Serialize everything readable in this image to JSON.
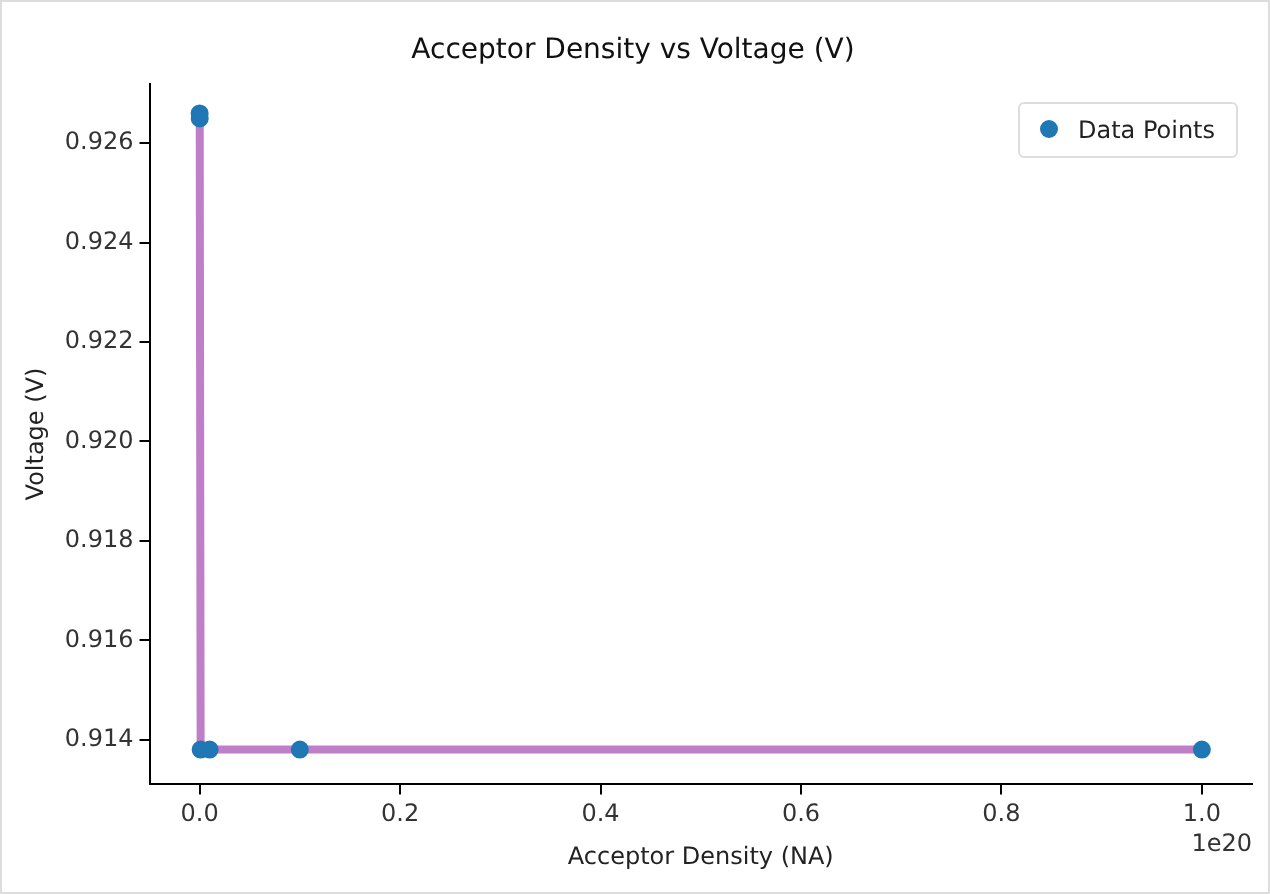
{
  "chart_data": {
    "type": "scatter",
    "title": "Acceptor Density vs Voltage (V)",
    "xlabel": "Acceptor Density (NA)",
    "ylabel": "Voltage (V)",
    "annotations": [
      "1e20"
    ],
    "x": [
      1e-05,
      0.0001,
      0.001,
      0.01,
      0.1,
      1
    ],
    "series": [
      {
        "type": "line",
        "color": "#bf7fc8",
        "values": [
          0.9266,
          0.9265,
          0.9138,
          0.9138,
          0.9138,
          0.9138
        ],
        "line_style": "solid",
        "marker": "none"
      },
      {
        "name": "Data Points",
        "color": "#1f77b4",
        "values": [
          0.9266,
          0.9265,
          0.9138,
          0.9138,
          0.9138,
          0.9138
        ],
        "marker": "circle"
      }
    ],
    "xlim": [
      -0.05,
      1.05
    ],
    "xticks": [
      {
        "value": 0,
        "label": "0.0"
      },
      0.2,
      0.4,
      0.6,
      0.8,
      {
        "value": 1,
        "label": "1.0"
      }
    ],
    "ylim": [
      0.9131,
      0.9272
    ],
    "yticks": [
      0.914,
      0.916,
      0.918,
      {
        "value": 0.92,
        "label": "0.920"
      },
      0.922,
      0.924,
      0.926
    ],
    "grid": false,
    "legend": "top right"
  }
}
